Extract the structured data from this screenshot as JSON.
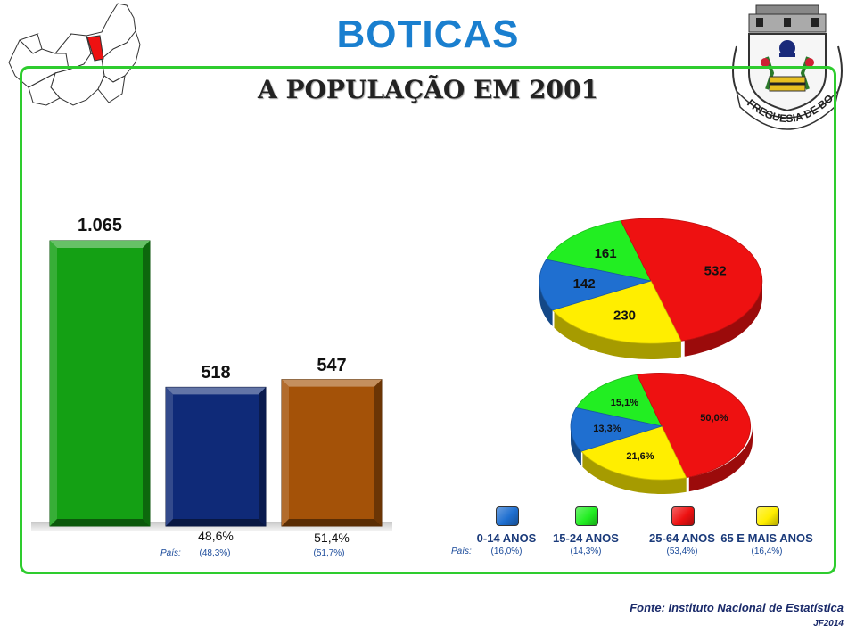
{
  "title": "BOTICAS",
  "subtitle": "A POPULAÇÃO EM 2001",
  "source": "Fonte: Instituto Nacional de Estatística",
  "code": "JF2014",
  "pais_label": "País:",
  "crest_text": "FREGUESIA DE BOTICAS",
  "chart_data": [
    {
      "type": "bar",
      "values": [
        1065,
        518,
        547
      ],
      "value_labels": [
        "1.065",
        "518",
        "547"
      ],
      "sub_labels": [
        "",
        "48,6%",
        "51,4%"
      ],
      "pais": [
        "",
        "(48,3%)",
        "(51,7%)"
      ],
      "colors": [
        "#14a014",
        "#0f2a78",
        "#a45208"
      ]
    },
    {
      "type": "pie",
      "categories": [
        "0-14 ANOS",
        "15-24 ANOS",
        "25-64 ANOS",
        "65 E MAIS ANOS"
      ],
      "values": [
        142,
        161,
        532,
        230
      ],
      "percent_labels": [
        "13,3%",
        "15,1%",
        "50,0%",
        "21,6%"
      ],
      "pais": [
        "(16,0%)",
        "(14,3%)",
        "(53,4%)",
        "(16,4%)"
      ],
      "colors": [
        "#1f6fd0",
        "#22ee22",
        "#ee1111",
        "#ffee00"
      ]
    }
  ]
}
